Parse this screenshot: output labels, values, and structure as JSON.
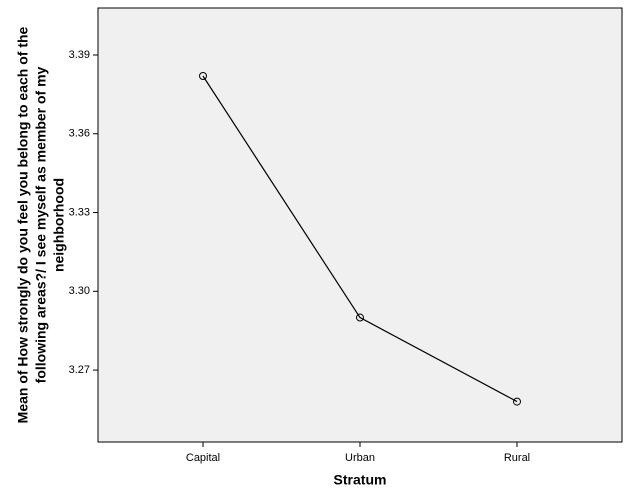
{
  "chart_data": {
    "type": "line",
    "xlabel": "Stratum",
    "ylabel": [
      "Mean of How strongly do you feel you belong to each of the",
      "following areas?/ I see myself as member of my",
      "neighborhood"
    ],
    "categories": [
      "Capital",
      "Urban",
      "Rural"
    ],
    "values": [
      3.382,
      3.29,
      3.258
    ],
    "color": "#000000",
    "ylim": [
      3.2426,
      3.4079
    ],
    "yticks": [
      3.39,
      3.36,
      3.33,
      {
        "value": 3.3,
        "label": "3.30"
      },
      3.27
    ],
    "grid": false
  }
}
